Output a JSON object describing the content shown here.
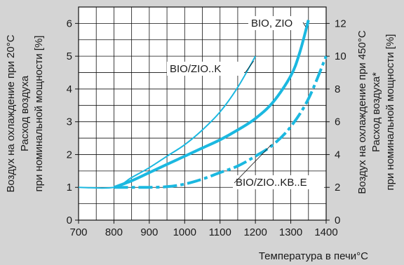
{
  "chart_data": {
    "type": "line",
    "xlabel": "Температура в печи°C",
    "ylabel_left": [
      "Воздух на охлаждение при 20°C",
      "Расход воздуха",
      "при номинальной мощности  [%]"
    ],
    "ylabel_right": [
      "Воздух на охлаждение при 450°C",
      "Расход воздуха*",
      "при номинальной мощности  [%]"
    ],
    "xlim": [
      700,
      1400
    ],
    "ylim_left": [
      0,
      6.5
    ],
    "ylim_right": [
      0,
      13
    ],
    "x_ticks": [
      "700",
      "800",
      "900",
      "1000",
      "1100",
      "1200",
      "1300",
      "1400"
    ],
    "y_left_ticks": [
      "0",
      "1",
      "2",
      "3",
      "4",
      "5",
      "6"
    ],
    "y_right_ticks": [
      "0",
      "2",
      "4",
      "6",
      "8",
      "10",
      "12"
    ],
    "grid": true,
    "series": [
      {
        "name": "BIO/ZIO..K",
        "style": "thin-solid",
        "color": "#1bb8e0",
        "x": [
          700,
          800,
          850,
          900,
          950,
          1000,
          1050,
          1100,
          1150,
          1200
        ],
        "y": [
          1.0,
          1.0,
          1.3,
          1.6,
          1.95,
          2.3,
          2.75,
          3.3,
          4.05,
          5.0
        ]
      },
      {
        "name": "BIO, ZIO",
        "style": "thick-solid",
        "color": "#1bb8e0",
        "x": [
          800,
          850,
          900,
          950,
          1000,
          1050,
          1100,
          1150,
          1200,
          1250,
          1300,
          1325,
          1350
        ],
        "y": [
          1.0,
          1.2,
          1.45,
          1.7,
          1.95,
          2.2,
          2.45,
          2.75,
          3.1,
          3.6,
          4.4,
          5.1,
          6.1
        ]
      },
      {
        "name": "BIO/ZIO..KB..E",
        "style": "thick-dashed",
        "color": "#1bb8e0",
        "x": [
          800,
          850,
          900,
          950,
          1000,
          1050,
          1100,
          1150,
          1200,
          1250,
          1300,
          1350,
          1400
        ],
        "y": [
          1.0,
          1.0,
          1.0,
          1.02,
          1.1,
          1.25,
          1.45,
          1.65,
          1.95,
          2.3,
          2.85,
          3.7,
          5.0
        ]
      }
    ]
  }
}
